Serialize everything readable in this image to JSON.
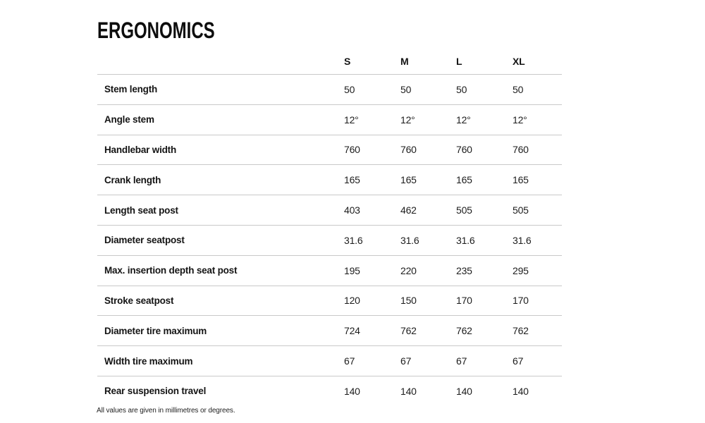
{
  "page": {
    "title": "ERGONOMICS",
    "footnote": "All values are given in millimetres or degrees."
  },
  "table": {
    "columns": [
      "S",
      "M",
      "L",
      "XL"
    ],
    "rows": [
      {
        "label": "Stem length",
        "values": [
          "50",
          "50",
          "50",
          "50"
        ]
      },
      {
        "label": "Angle stem",
        "values": [
          "12°",
          "12°",
          "12°",
          "12°"
        ]
      },
      {
        "label": "Handlebar width",
        "values": [
          "760",
          "760",
          "760",
          "760"
        ]
      },
      {
        "label": "Crank length",
        "values": [
          "165",
          "165",
          "165",
          "165"
        ]
      },
      {
        "label": "Length seat post",
        "values": [
          "403",
          "462",
          "505",
          "505"
        ]
      },
      {
        "label": "Diameter seatpost",
        "values": [
          "31.6",
          "31.6",
          "31.6",
          "31.6"
        ]
      },
      {
        "label": "Max. insertion depth seat post",
        "values": [
          "195",
          "220",
          "235",
          "295"
        ]
      },
      {
        "label": "Stroke seatpost",
        "values": [
          "120",
          "150",
          "170",
          "170"
        ]
      },
      {
        "label": "Diameter tire maximum",
        "values": [
          "724",
          "762",
          "762",
          "762"
        ]
      },
      {
        "label": "Width tire maximum",
        "values": [
          "67",
          "67",
          "67",
          "67"
        ]
      },
      {
        "label": "Rear suspension travel",
        "values": [
          "140",
          "140",
          "140",
          "140"
        ]
      }
    ]
  }
}
